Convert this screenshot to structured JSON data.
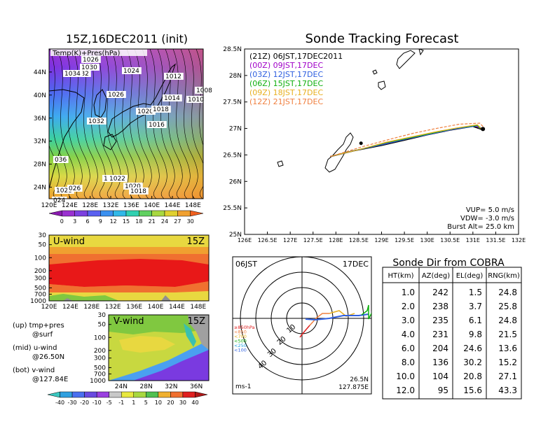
{
  "left_title": "15Z,16DEC2011 (init)",
  "main_title": "Sonde Tracking Forecast",
  "colors": {
    "series": [
      "#000000",
      "#a000c8",
      "#3060e0",
      "#10b010",
      "#e8b020",
      "#f08040"
    ]
  },
  "map_panel": {
    "overlay_label": "Temp(K)+Pres(hPa)",
    "lat_ticks": [
      "44N",
      "40N",
      "36N",
      "32N",
      "28N",
      "24N"
    ],
    "lon_ticks": [
      "120E",
      "124E",
      "128E",
      "132E",
      "136E",
      "140E",
      "144E",
      "148E"
    ],
    "colorbar_ticks": [
      "0",
      "3",
      "6",
      "9",
      "12",
      "15",
      "18",
      "21",
      "24",
      "27",
      "30"
    ],
    "isobar_labels": [
      "1026",
      "1030",
      "1032",
      "1034",
      "1024",
      "1022",
      "1012",
      "1008",
      "1010",
      "1014",
      "1026",
      "1020",
      "1018",
      "1016",
      "1032",
      "036",
      "1022",
      "1020",
      "1018",
      "1028",
      "026",
      "024"
    ]
  },
  "uwind_panel": {
    "title": "U-wind",
    "time": "15Z",
    "p_ticks": [
      "30",
      "50",
      "100",
      "200",
      "300",
      "500",
      "700",
      "1000"
    ],
    "lon_ticks": [
      "120E",
      "124E",
      "128E",
      "132E",
      "136E",
      "140E",
      "144E",
      "148E"
    ]
  },
  "vwind_panel": {
    "title": "V-wind",
    "time": "15Z",
    "p_ticks": [
      "30",
      "50",
      "100",
      "200",
      "300",
      "500",
      "700",
      "1000"
    ],
    "lat_ticks": [
      "24N",
      "28N",
      "32N",
      "36N"
    ],
    "colorbar_ticks": [
      "-40",
      "-30",
      "-20",
      "-10",
      "-5",
      "-1",
      "1",
      "5",
      "10",
      "20",
      "30",
      "40"
    ]
  },
  "legend_notes": [
    {
      "line1": "(up) tmp+pres",
      "line2": "@surf"
    },
    {
      "line1": "(mid) u-wind",
      "line2": "@26.50N"
    },
    {
      "line1": "(bot) v-wind",
      "line2": "@127.84E"
    }
  ],
  "track_panel": {
    "lat_ticks": [
      "28.5N",
      "28N",
      "27.5N",
      "27N",
      "26.5N",
      "26N",
      "25.5N",
      "25N"
    ],
    "lon_ticks": [
      "126E",
      "126.5E",
      "127E",
      "127.5E",
      "128E",
      "128.5E",
      "129E",
      "129.5E",
      "130E",
      "130.5E",
      "131E",
      "131.5E",
      "132E"
    ],
    "legend": [
      {
        "text": "(21Z)  06JST,17DEC2011"
      },
      {
        "text": "(00Z)  09JST,17DEC"
      },
      {
        "text": "(03Z)  12JST,17DEC"
      },
      {
        "text": "(06Z)  15JST,17DEC"
      },
      {
        "text": "(09Z)  18JST,17DEC"
      },
      {
        "text": "(12Z)  21JST,17DEC"
      }
    ],
    "params": [
      "VUP=  5.0  m/s",
      "VDW= -3.0  m/s",
      "Burst Alt=  25.0  km"
    ]
  },
  "polar_panel": {
    "time_label": "06JST",
    "date_label": "17DEC",
    "ring_labels": [
      "10",
      "20",
      "30",
      "40"
    ],
    "level_legend": [
      "≥850hPa",
      "<850",
      "<700",
      "<500",
      "<250",
      "<100"
    ],
    "level_colors": [
      "#e02020",
      "#f08040",
      "#e8b020",
      "#10b010",
      "#20a0e0",
      "#3060e0"
    ],
    "unit": "ms-1",
    "location_lat": "26.5N",
    "location_lon": "127.875E"
  },
  "sonde_table": {
    "title": "Sonde Dir from COBRA",
    "headers": [
      "HT(km)",
      "AZ(deg)",
      "EL(deg)",
      "RNG(km)"
    ],
    "rows": [
      [
        "1.0",
        "242",
        "1.5",
        "24.8"
      ],
      [
        "2.0",
        "238",
        "3.7",
        "25.8"
      ],
      [
        "3.0",
        "235",
        "6.1",
        "24.8"
      ],
      [
        "4.0",
        "231",
        "9.8",
        "21.5"
      ],
      [
        "6.0",
        "204",
        "24.6",
        "13.6"
      ],
      [
        "8.0",
        "136",
        "30.2",
        "15.2"
      ],
      [
        "10.0",
        "104",
        "20.8",
        "27.1"
      ],
      [
        "12.0",
        "95",
        "15.6",
        "43.3"
      ]
    ]
  },
  "chart_data": [
    {
      "type": "heatmap",
      "title": "15Z,16DEC2011 (init)",
      "note": "Temp(K)+Pres(hPa)",
      "xlim": [
        120,
        150
      ],
      "ylim": [
        22,
        48
      ]
    },
    {
      "type": "heatmap",
      "title": "U-wind",
      "xlim": [
        120,
        150
      ],
      "yscale": "log-pressure",
      "ylim": [
        1000,
        30
      ]
    },
    {
      "type": "heatmap",
      "title": "V-wind",
      "xlim": [
        22,
        38
      ],
      "yscale": "log-pressure",
      "ylim": [
        1000,
        30
      ]
    },
    {
      "type": "line",
      "title": "Sonde Tracking Forecast",
      "xlim": [
        126,
        132
      ],
      "ylim": [
        25,
        28.5
      ],
      "series": [
        {
          "name": "(21Z)  06JST,17DEC2011",
          "points": [
            [
              127.875,
              26.47
            ],
            [
              128.4,
              26.58
            ],
            [
              129.0,
              26.68
            ],
            [
              129.5,
              26.78
            ],
            [
              130.0,
              26.88
            ],
            [
              130.5,
              26.97
            ],
            [
              131.0,
              27.04
            ],
            [
              131.2,
              26.98
            ]
          ]
        },
        {
          "name": "(00Z)  09JST,17DEC",
          "points": [
            [
              127.875,
              26.47
            ],
            [
              128.5,
              26.6
            ],
            [
              129.1,
              26.72
            ],
            [
              129.6,
              26.81
            ],
            [
              130.1,
              26.9
            ],
            [
              130.6,
              26.99
            ],
            [
              131.05,
              27.06
            ],
            [
              131.15,
              27.0
            ]
          ]
        },
        {
          "name": "(03Z)  12JST,17DEC",
          "points": [
            [
              127.875,
              26.47
            ],
            [
              128.45,
              26.59
            ],
            [
              129.05,
              26.7
            ],
            [
              129.55,
              26.8
            ],
            [
              130.05,
              26.89
            ],
            [
              130.55,
              26.98
            ],
            [
              131.1,
              27.05
            ],
            [
              131.2,
              27.0
            ]
          ]
        },
        {
          "name": "(06Z)  15JST,17DEC",
          "points": [
            [
              127.875,
              26.47
            ],
            [
              128.5,
              26.6
            ],
            [
              129.1,
              26.73
            ],
            [
              129.6,
              26.82
            ],
            [
              130.1,
              26.91
            ],
            [
              130.6,
              27.0
            ],
            [
              131.1,
              27.06
            ],
            [
              131.15,
              27.0
            ]
          ]
        },
        {
          "name": "(09Z)  18JST,17DEC",
          "points": [
            [
              127.875,
              26.47
            ],
            [
              128.55,
              26.61
            ],
            [
              129.1,
              26.74
            ],
            [
              129.65,
              26.84
            ],
            [
              130.15,
              26.93
            ],
            [
              130.65,
              27.01
            ],
            [
              131.1,
              27.07
            ],
            [
              131.18,
              27.0
            ]
          ]
        },
        {
          "name": "(12Z)  21JST,17DEC",
          "points": [
            [
              127.875,
              26.47
            ],
            [
              128.6,
              26.66
            ],
            [
              129.2,
              26.8
            ],
            [
              129.7,
              26.91
            ],
            [
              130.2,
              27.0
            ],
            [
              130.7,
              27.08
            ],
            [
              131.15,
              27.1
            ],
            [
              131.25,
              27.01
            ]
          ]
        }
      ]
    },
    {
      "type": "table",
      "title": "Sonde Dir from COBRA",
      "columns": [
        "HT(km)",
        "AZ(deg)",
        "EL(deg)",
        "RNG(km)"
      ],
      "rows": [
        [
          1.0,
          242,
          1.5,
          24.8
        ],
        [
          2.0,
          238,
          3.7,
          25.8
        ],
        [
          3.0,
          235,
          6.1,
          24.8
        ],
        [
          4.0,
          231,
          9.8,
          21.5
        ],
        [
          6.0,
          204,
          24.6,
          13.6
        ],
        [
          8.0,
          136,
          30.2,
          15.2
        ],
        [
          10.0,
          104,
          20.8,
          27.1
        ],
        [
          12.0,
          95,
          15.6,
          43.3
        ]
      ]
    }
  ]
}
